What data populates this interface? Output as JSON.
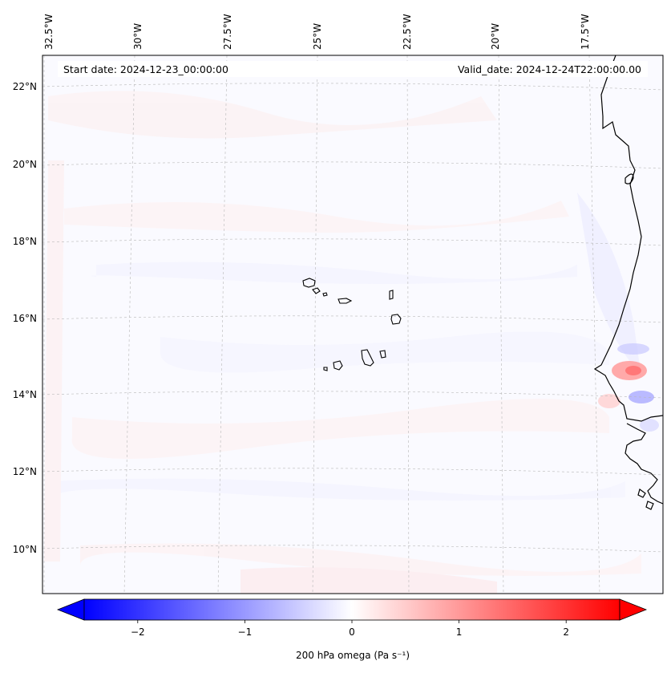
{
  "map": {
    "title_left": "Start date: 2024-12-23_00:00:00",
    "title_right": "Valid_date: 2024-12-24T22:00:00.00",
    "variable_label": "200 hPa omega (Pa s⁻¹)",
    "lon_labels": [
      "32.5°W",
      "30°W",
      "27.5°W",
      "25°W",
      "22.5°W",
      "20°W",
      "17.5°W"
    ],
    "lat_labels": [
      "22°N",
      "20°N",
      "18°N",
      "16°N",
      "14°N",
      "12°N",
      "10°N"
    ],
    "colorbar": {
      "ticks": [
        "−2",
        "−1",
        "0",
        "1",
        "2"
      ],
      "tick_values": [
        -2,
        -1,
        0,
        1,
        2
      ],
      "min": -2.5,
      "max": 2.5,
      "low_color": "#0000ff",
      "mid_color": "#ffffff",
      "high_color": "#ff0000"
    },
    "features": [
      "coastline-africa",
      "cape-verde-islands"
    ]
  }
}
